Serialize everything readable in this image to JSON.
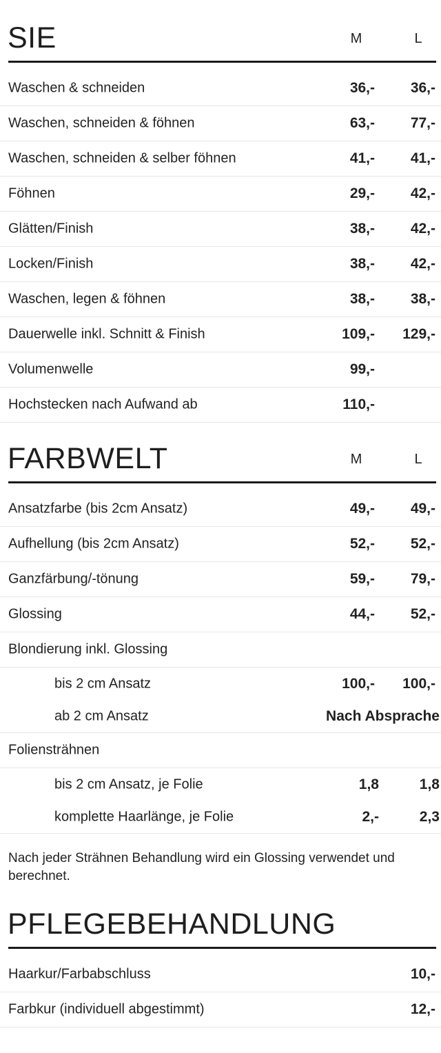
{
  "sections": [
    {
      "title": "SIE",
      "col_m": "M",
      "col_l": "L",
      "rows": [
        {
          "label": "Waschen & schneiden",
          "m": "36,-",
          "l": "36,-"
        },
        {
          "label": "Waschen, schneiden & föhnen",
          "m": "63,-",
          "l": "77,-"
        },
        {
          "label": "Waschen, schneiden &  selber föhnen",
          "m": "41,-",
          "l": "41,-"
        },
        {
          "label": "Föhnen",
          "m": "29,-",
          "l": "42,-"
        },
        {
          "label": "Glätten/Finish",
          "m": "38,-",
          "l": "42,-"
        },
        {
          "label": "Locken/Finish",
          "m": "38,-",
          "l": "42,-"
        },
        {
          "label": "Waschen, legen & föhnen",
          "m": "38,-",
          "l": "38,-"
        },
        {
          "label": "Dauerwelle inkl. Schnitt & Finish",
          "m": "109,-",
          "l": "129,-"
        },
        {
          "label": "Volumenwelle",
          "m": "99,-",
          "l": ""
        },
        {
          "label": "Hochstecken nach Aufwand ab",
          "m": "110,-",
          "l": ""
        }
      ]
    },
    {
      "title": "FARBWELT",
      "col_m": "M",
      "col_l": "L",
      "rows": [
        {
          "label": "Ansatzfarbe (bis 2cm Ansatz)",
          "m": "49,-",
          "l": "49,-"
        },
        {
          "label": "Aufhellung (bis 2cm Ansatz)",
          "m": "52,-",
          "l": "52,-"
        },
        {
          "label": "Ganzfärbung/-tönung",
          "m": "59,-",
          "l": "79,-"
        },
        {
          "label": "Glossing",
          "m": "44,-",
          "l": "52,-"
        },
        {
          "label": "Blondierung inkl. Glossing",
          "m": "",
          "l": ""
        },
        {
          "label": "bis 2 cm Ansatz",
          "m": "100,-",
          "l": "100,-",
          "sub": true
        },
        {
          "label": "ab 2 cm Ansatz",
          "wide": "Nach Absprache",
          "sub": true,
          "last": true
        },
        {
          "label": "Foliensträhnen",
          "m": "",
          "l": ""
        },
        {
          "label": "bis 2 cm Ansatz, je Folie",
          "m": "1,8",
          "l": "1,8",
          "sub": true,
          "dec": true
        },
        {
          "label": "komplette Haarlänge, je Folie",
          "m": "2,-",
          "l": "2,3",
          "sub": true,
          "last": true,
          "dec": true
        }
      ]
    },
    {
      "title": "PFLEGEBEHANDLUNG",
      "col_m": "",
      "col_l": "",
      "rows": [
        {
          "label": "Haarkur/Farbabschluss",
          "m": "",
          "l": "10,-"
        },
        {
          "label": "Farbkur (individuell abgestimmt)",
          "m": "",
          "l": "12,-"
        }
      ]
    }
  ],
  "note": "Nach jeder Strähnen Behandlung wird ein Glossing verwendet und berechnet."
}
